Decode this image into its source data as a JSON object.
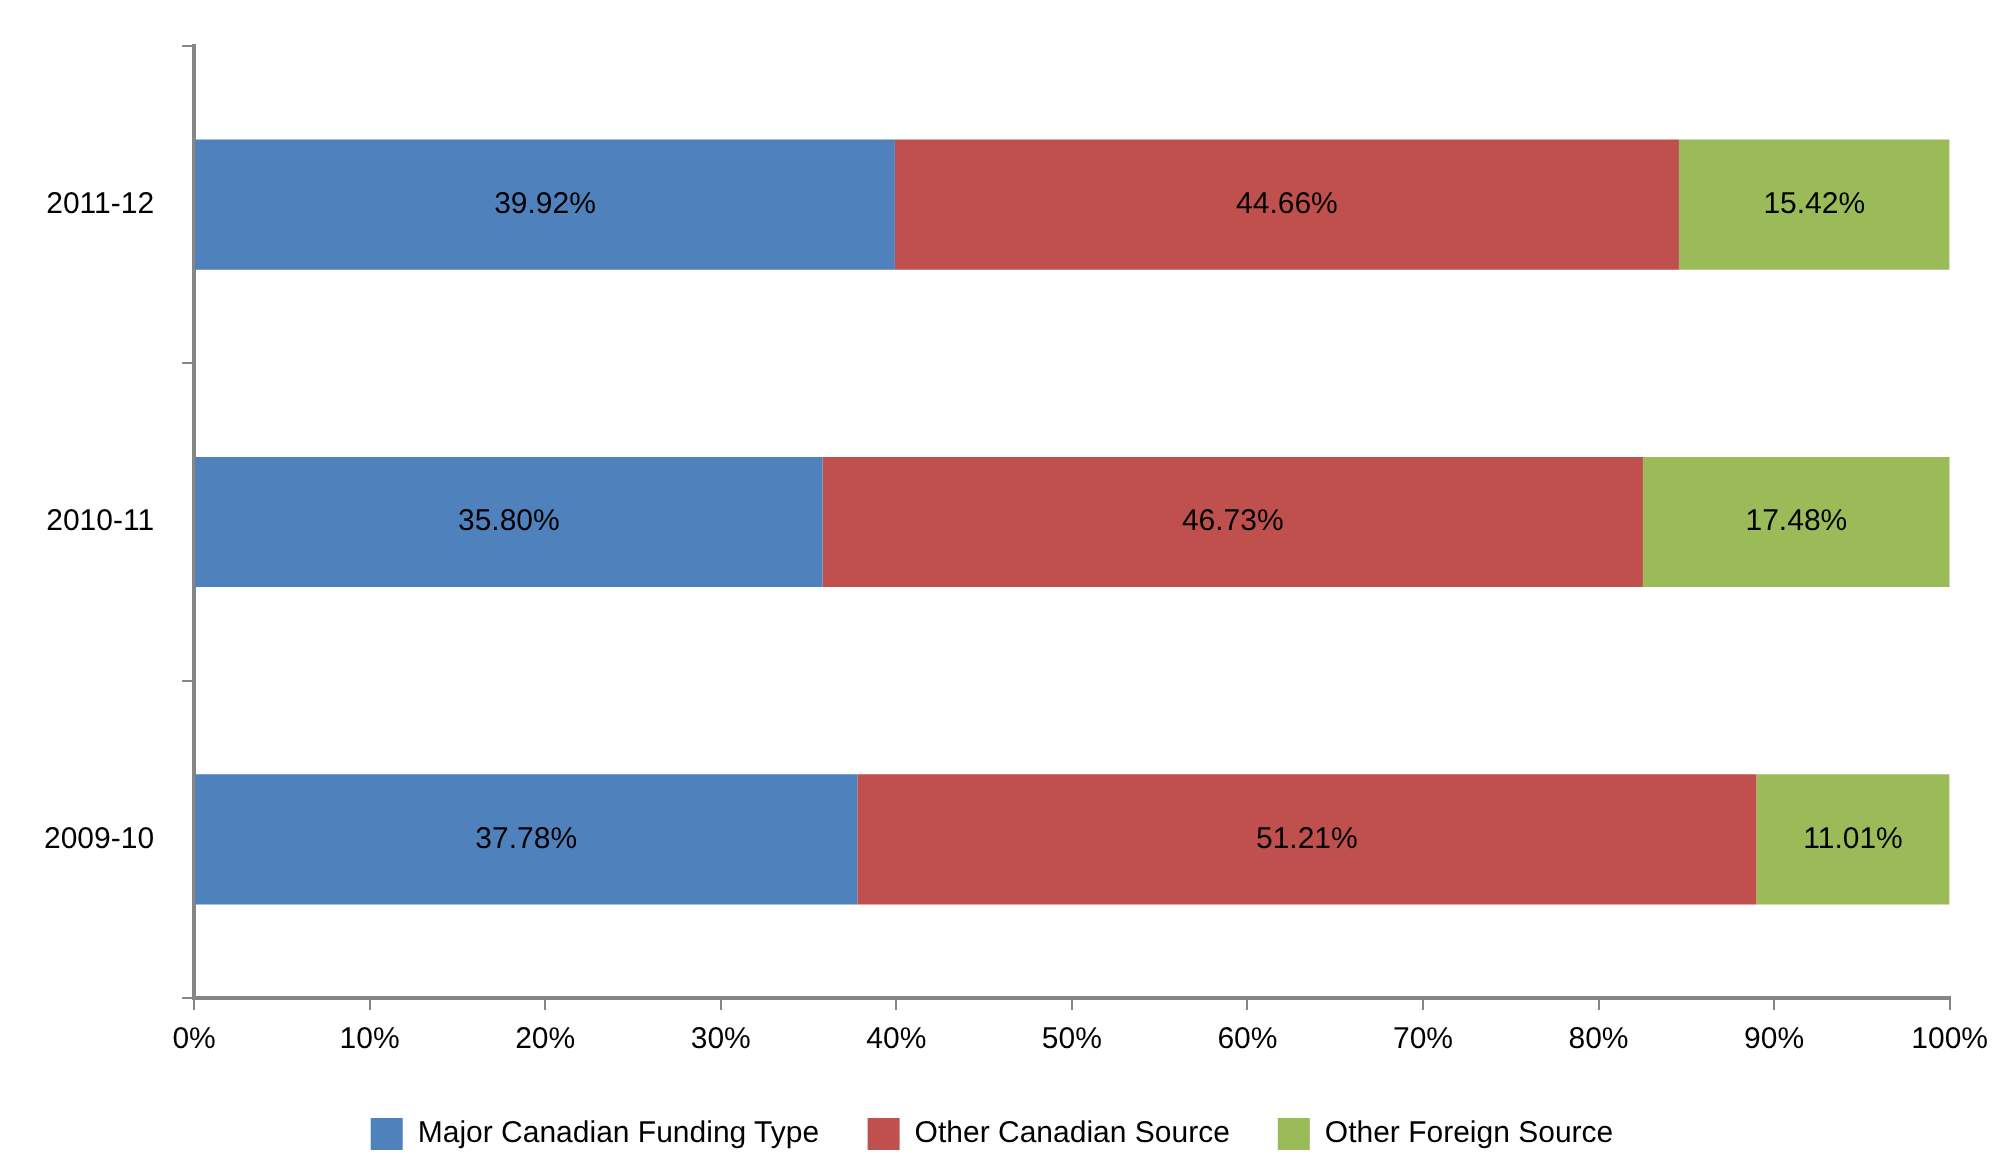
{
  "chart_data": {
    "type": "bar",
    "orientation": "horizontal",
    "stacked": true,
    "categories": [
      "2011-12",
      "2010-11",
      "2009-10"
    ],
    "series": [
      {
        "name": "Major Canadian Funding Type",
        "color": "#4f81bd",
        "values": [
          39.92,
          35.8,
          37.78
        ],
        "value_labels": [
          "39.92%",
          "35.80%",
          "37.78%"
        ]
      },
      {
        "name": "Other Canadian Source",
        "color": "#c0504d",
        "values": [
          44.66,
          46.73,
          51.21
        ],
        "value_labels": [
          "44.66%",
          "46.73%",
          "51.21%"
        ]
      },
      {
        "name": "Other Foreign Source",
        "color": "#9bbb59",
        "values": [
          15.42,
          17.48,
          11.01
        ],
        "value_labels": [
          "15.42%",
          "17.48%",
          "11.01%"
        ]
      }
    ],
    "xlim": [
      0,
      100
    ],
    "xticks": [
      {
        "value": 0,
        "label": "0%"
      },
      {
        "value": 10,
        "label": "10%"
      },
      {
        "value": 20,
        "label": "20%"
      },
      {
        "value": 30,
        "label": "30%"
      },
      {
        "value": 40,
        "label": "40%"
      },
      {
        "value": 50,
        "label": "50%"
      },
      {
        "value": 60,
        "label": "60%"
      },
      {
        "value": 70,
        "label": "70%"
      },
      {
        "value": 80,
        "label": "80%"
      },
      {
        "value": 90,
        "label": "90%"
      },
      {
        "value": 100,
        "label": "100%"
      }
    ],
    "legend": "bottom"
  }
}
